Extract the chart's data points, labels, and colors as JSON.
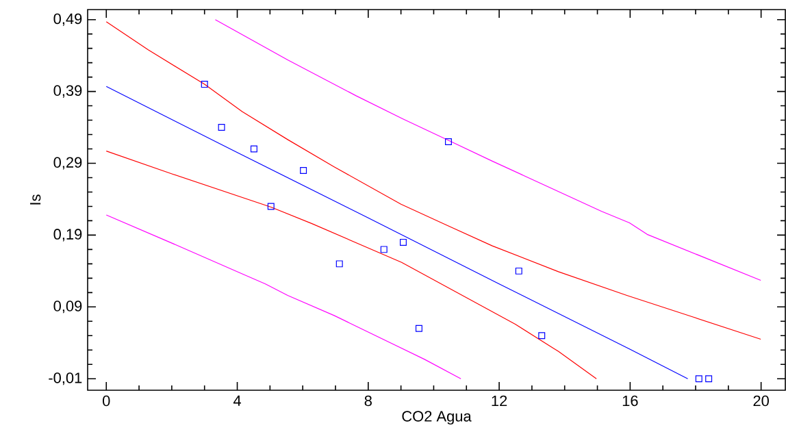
{
  "chart_data": {
    "type": "scatter",
    "xlabel": "CO2 Agua",
    "ylabel": "Is",
    "xlim": [
      -0.57,
      20.74
    ],
    "ylim": [
      -0.026,
      0.504
    ],
    "xticks": [
      0,
      4,
      8,
      12,
      16,
      20
    ],
    "yticks": [
      {
        "value": -0.01,
        "label": "-0,01"
      },
      {
        "value": 0.09,
        "label": "0,09"
      },
      {
        "value": 0.19,
        "label": "0,19"
      },
      {
        "value": 0.29,
        "label": "0,29"
      },
      {
        "value": 0.39,
        "label": "0,39"
      },
      {
        "value": 0.49,
        "label": "0,49"
      }
    ],
    "series": [
      {
        "type": "line",
        "color": "#ff00ff",
        "marker": "none",
        "line_style": "solid",
        "x": [
          0,
          2.25,
          4.15,
          4.86,
          5.54,
          6.96,
          9.72,
          10.83
        ],
        "values": [
          0.218,
          0.174,
          0.136,
          0.122,
          0.106,
          0.078,
          0.017,
          -0.01
        ]
      },
      {
        "type": "line",
        "color": "#ff0000",
        "marker": "none",
        "line_style": "solid",
        "x": [
          0,
          2.02,
          5.03,
          6.28,
          9.02,
          11.0,
          12.49,
          13.81,
          14.97
        ],
        "values": [
          0.307,
          0.275,
          0.229,
          0.206,
          0.152,
          0.103,
          0.066,
          0.028,
          -0.01
        ]
      },
      {
        "type": "line",
        "color": "#0000ff",
        "marker": "none",
        "line_style": "solid",
        "x": [
          0,
          4,
          8,
          12,
          16,
          17.76
        ],
        "values": [
          0.397,
          0.305,
          0.214,
          0.122,
          0.031,
          -0.01
        ]
      },
      {
        "type": "line",
        "color": "#ff0000",
        "marker": "none",
        "line_style": "solid",
        "x": [
          0,
          1.28,
          3.0,
          4.15,
          5.54,
          6.96,
          9.0,
          10.39,
          11.79,
          13.81,
          15.9,
          17.92,
          19.99
        ],
        "values": [
          0.487,
          0.448,
          0.4,
          0.362,
          0.323,
          0.285,
          0.233,
          0.204,
          0.175,
          0.139,
          0.106,
          0.076,
          0.045
        ]
      },
      {
        "type": "line",
        "color": "#ff00ff",
        "marker": "none",
        "line_style": "solid",
        "x": [
          3.33,
          5.54,
          7.63,
          9.05,
          10.45,
          11.79,
          15.13,
          15.98,
          16.52,
          19.99
        ],
        "values": [
          0.49,
          0.434,
          0.384,
          0.352,
          0.322,
          0.293,
          0.223,
          0.207,
          0.191,
          0.127
        ]
      },
      {
        "color": "#0000ff",
        "marker": "square",
        "x": [
          3.0,
          3.52,
          4.51,
          6.02,
          5.03,
          10.45,
          7.12,
          8.48,
          9.07,
          9.55,
          12.6,
          13.3,
          18.1,
          18.4
        ],
        "values": [
          0.4,
          0.34,
          0.31,
          0.28,
          0.23,
          0.32,
          0.15,
          0.17,
          0.18,
          0.06,
          0.14,
          0.05,
          -0.01,
          -0.01
        ]
      }
    ]
  }
}
